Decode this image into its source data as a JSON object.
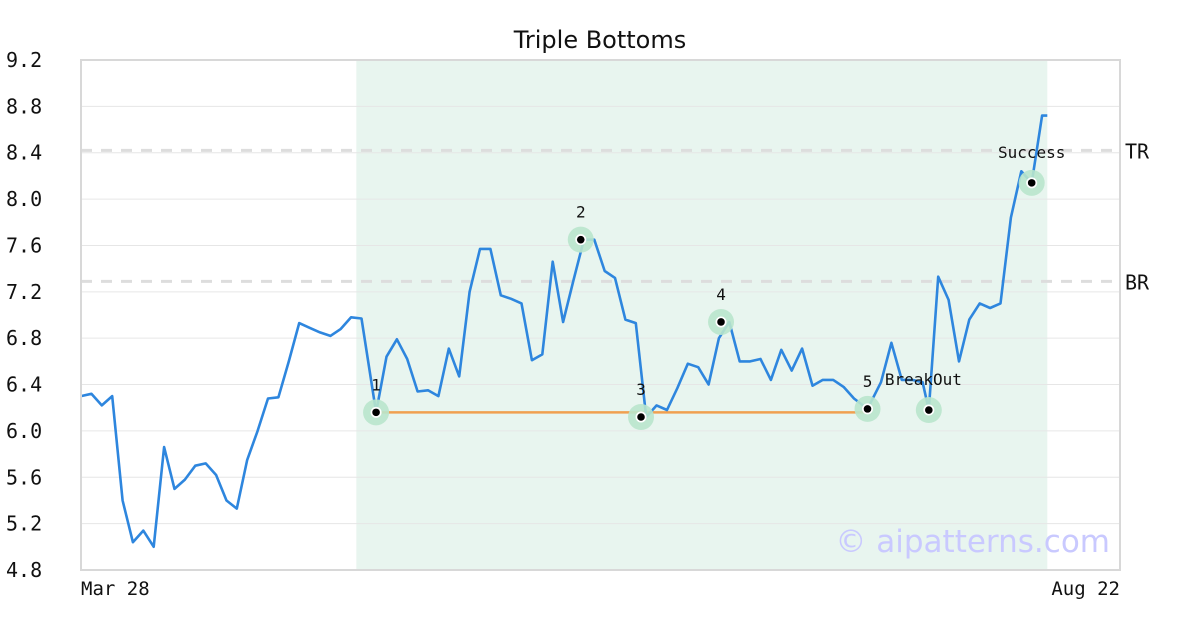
{
  "chart_data": {
    "type": "line",
    "title": "Triple Bottoms",
    "watermark": "© aipatterns.com",
    "ylim": [
      4.8,
      9.2
    ],
    "yticks": [
      "4.8",
      "5.2",
      "5.6",
      "6.0",
      "6.4",
      "6.8",
      "7.2",
      "7.6",
      "8.0",
      "8.4",
      "8.8",
      "9.2"
    ],
    "xlim": [
      0,
      100
    ],
    "xticks": [
      {
        "x": 0,
        "label": "Mar 28"
      },
      {
        "x": 100,
        "label": "Aug 22"
      }
    ],
    "grid": true,
    "colors": {
      "line": "#2e86de",
      "highlight": "#e8f5ef",
      "support": "#f0a050",
      "marker_ring": "#b9e6cc",
      "levels": "#dddddd"
    },
    "pattern_window": [
      26.5,
      93.0
    ],
    "levels": [
      {
        "label": "TR",
        "y": 8.42
      },
      {
        "label": "BR",
        "y": 7.29
      }
    ],
    "support_line": {
      "x": [
        28.4,
        75.7
      ],
      "y": [
        6.16,
        6.16
      ]
    },
    "series": [
      {
        "x": [
          0,
          1,
          2,
          3,
          4,
          5,
          6,
          7,
          8,
          9,
          10,
          11,
          12,
          13,
          14,
          15,
          16,
          17,
          18,
          19,
          20,
          21,
          22,
          23,
          24,
          25,
          26,
          27,
          28.4,
          29.4,
          30.4,
          31.4,
          32.4,
          33.4,
          34.4,
          35.4,
          36.4,
          37.4,
          38.4,
          39.4,
          40.4,
          41.4,
          42.4,
          43.4,
          44.4,
          45.4,
          46.4,
          47.4,
          48.4,
          49.4,
          50.4,
          51.4,
          52.4,
          53.4,
          54.4,
          55.4,
          56.4,
          57.4,
          58.4,
          59.4,
          60.4,
          61.4,
          62.4,
          63.4,
          64.4,
          65.4,
          66.4,
          67.4,
          68.4,
          69.4,
          70.4,
          71.4,
          72.4,
          73.4,
          74.4,
          75.7,
          77,
          78,
          79,
          80,
          81,
          81.6,
          82.5,
          83.5,
          84.5,
          85.5,
          86.5,
          87.5,
          88.5,
          89.5,
          90.5,
          91.5,
          92.5,
          93.0
        ],
        "y": [
          6.3,
          6.32,
          6.22,
          6.3,
          5.4,
          5.04,
          5.14,
          5.0,
          5.86,
          5.5,
          5.58,
          5.7,
          5.72,
          5.62,
          5.4,
          5.33,
          5.75,
          6.0,
          6.28,
          6.29,
          6.6,
          6.93,
          6.89,
          6.85,
          6.82,
          6.88,
          6.98,
          6.97,
          6.16,
          6.64,
          6.79,
          6.62,
          6.34,
          6.35,
          6.3,
          6.71,
          6.47,
          7.2,
          7.57,
          7.57,
          7.17,
          7.14,
          7.1,
          6.61,
          6.66,
          7.46,
          6.94,
          7.3,
          7.65,
          7.65,
          7.38,
          7.32,
          6.96,
          6.93,
          6.12,
          6.22,
          6.18,
          6.37,
          6.58,
          6.55,
          6.4,
          6.8,
          6.94,
          6.6,
          6.6,
          6.62,
          6.44,
          6.7,
          6.52,
          6.71,
          6.39,
          6.44,
          6.44,
          6.38,
          6.28,
          6.19,
          6.42,
          6.76,
          6.44,
          6.44,
          6.42,
          6.18,
          7.33,
          7.13,
          6.6,
          6.96,
          7.1,
          7.06,
          7.1,
          7.84,
          8.24,
          8.14,
          8.72,
          8.72
        ]
      }
    ],
    "points": [
      {
        "label": "1",
        "x": 28.4,
        "y": 6.16
      },
      {
        "label": "2",
        "x": 48.1,
        "y": 7.65
      },
      {
        "label": "3",
        "x": 53.9,
        "y": 6.12
      },
      {
        "label": "4",
        "x": 61.6,
        "y": 6.94
      },
      {
        "label": "5",
        "x": 75.7,
        "y": 6.19
      },
      {
        "label": "BreakOut",
        "x": 81.6,
        "y": 6.18
      },
      {
        "label": "Success",
        "x": 91.5,
        "y": 8.14
      }
    ]
  }
}
